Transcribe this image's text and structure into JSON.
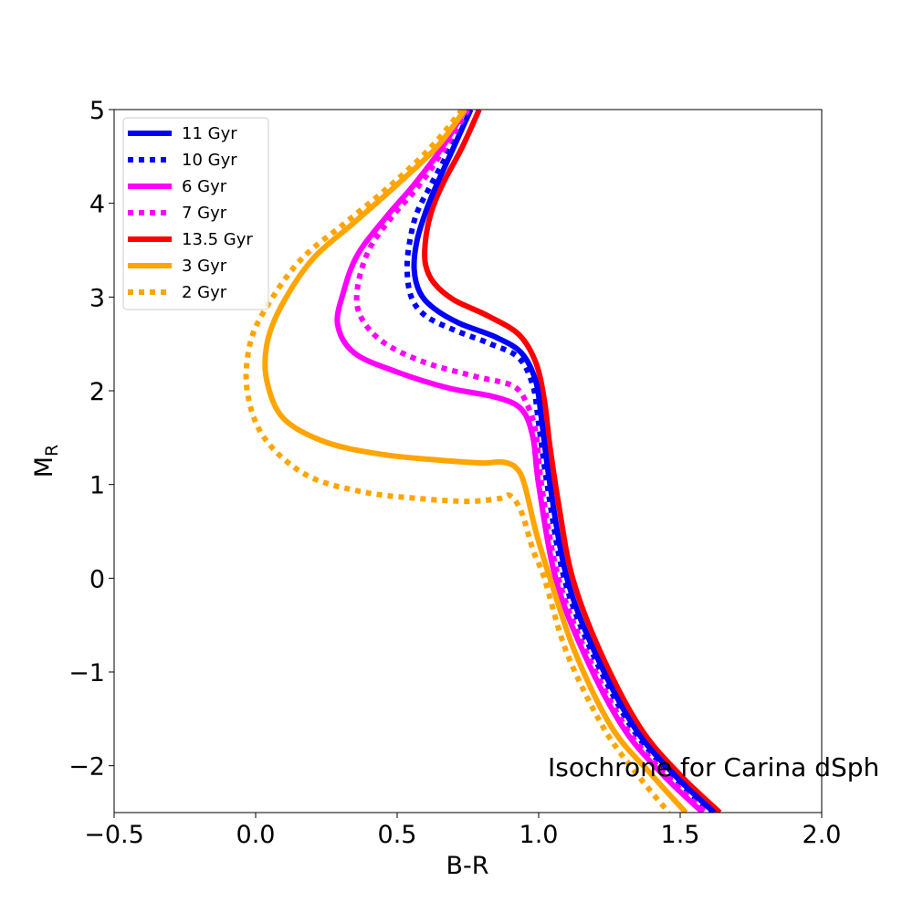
{
  "chart_data": {
    "type": "line",
    "title": "",
    "xlabel": "B-R",
    "ylabel_main": "M",
    "ylabel_sub": "R",
    "xlim": [
      -0.5,
      2.0
    ],
    "ylim": [
      5,
      -2.5
    ],
    "y_inverted": true,
    "grid": false,
    "legend_position": "top-left",
    "annotation": "Isochrone for Carina dSph",
    "x_ticks": [
      {
        "value": -0.5,
        "label": "−0.5"
      },
      {
        "value": 0.0,
        "label": "0.0"
      },
      {
        "value": 0.5,
        "label": "0.5"
      },
      {
        "value": 1.0,
        "label": "1.0"
      },
      {
        "value": 1.5,
        "label": "1.5"
      },
      {
        "value": 2.0,
        "label": "2.0"
      }
    ],
    "y_ticks": [
      {
        "value": -2,
        "label": "−2"
      },
      {
        "value": -1,
        "label": "−1"
      },
      {
        "value": 0,
        "label": "0"
      },
      {
        "value": 1,
        "label": "1"
      },
      {
        "value": 2,
        "label": "2"
      },
      {
        "value": 3,
        "label": "3"
      },
      {
        "value": 4,
        "label": "4"
      },
      {
        "value": 5,
        "label": "5"
      }
    ],
    "series": [
      {
        "name": "11 Gyr",
        "color": "#0000ff",
        "style": "solid",
        "points": [
          [
            0.76,
            5.0
          ],
          [
            0.7,
            4.6
          ],
          [
            0.64,
            4.2
          ],
          [
            0.6,
            3.9
          ],
          [
            0.57,
            3.6
          ],
          [
            0.56,
            3.3
          ],
          [
            0.58,
            3.05
          ],
          [
            0.63,
            2.88
          ],
          [
            0.72,
            2.72
          ],
          [
            0.85,
            2.57
          ],
          [
            0.94,
            2.4
          ],
          [
            0.99,
            2.1
          ],
          [
            1.01,
            1.7
          ],
          [
            1.04,
            1.0
          ],
          [
            1.1,
            0.0
          ],
          [
            1.2,
            -0.8
          ],
          [
            1.34,
            -1.6
          ],
          [
            1.48,
            -2.1
          ],
          [
            1.62,
            -2.5
          ]
        ]
      },
      {
        "name": "10 Gyr",
        "color": "#0000ff",
        "style": "dotted",
        "points": [
          [
            0.75,
            5.0
          ],
          [
            0.69,
            4.6
          ],
          [
            0.62,
            4.2
          ],
          [
            0.57,
            3.9
          ],
          [
            0.545,
            3.6
          ],
          [
            0.535,
            3.3
          ],
          [
            0.55,
            3.0
          ],
          [
            0.6,
            2.8
          ],
          [
            0.7,
            2.65
          ],
          [
            0.83,
            2.5
          ],
          [
            0.93,
            2.35
          ],
          [
            0.98,
            2.05
          ],
          [
            1.0,
            1.65
          ],
          [
            1.03,
            1.0
          ],
          [
            1.09,
            0.0
          ],
          [
            1.19,
            -0.8
          ],
          [
            1.33,
            -1.6
          ],
          [
            1.47,
            -2.1
          ],
          [
            1.61,
            -2.5
          ]
        ]
      },
      {
        "name": "6 Gyr",
        "color": "#ff00ff",
        "style": "solid",
        "points": [
          [
            0.74,
            5.0
          ],
          [
            0.66,
            4.6
          ],
          [
            0.56,
            4.2
          ],
          [
            0.46,
            3.85
          ],
          [
            0.36,
            3.45
          ],
          [
            0.31,
            3.05
          ],
          [
            0.29,
            2.7
          ],
          [
            0.35,
            2.4
          ],
          [
            0.5,
            2.2
          ],
          [
            0.68,
            2.03
          ],
          [
            0.85,
            1.93
          ],
          [
            0.94,
            1.8
          ],
          [
            0.98,
            1.5
          ],
          [
            1.0,
            1.0
          ],
          [
            1.06,
            0.0
          ],
          [
            1.16,
            -0.8
          ],
          [
            1.3,
            -1.6
          ],
          [
            1.44,
            -2.1
          ],
          [
            1.58,
            -2.5
          ]
        ]
      },
      {
        "name": "7 Gyr",
        "color": "#ff00ff",
        "style": "dotted",
        "points": [
          [
            0.75,
            5.0
          ],
          [
            0.67,
            4.6
          ],
          [
            0.58,
            4.2
          ],
          [
            0.48,
            3.85
          ],
          [
            0.4,
            3.5
          ],
          [
            0.36,
            3.1
          ],
          [
            0.37,
            2.8
          ],
          [
            0.45,
            2.52
          ],
          [
            0.6,
            2.3
          ],
          [
            0.78,
            2.15
          ],
          [
            0.91,
            2.05
          ],
          [
            0.96,
            1.85
          ],
          [
            0.99,
            1.55
          ],
          [
            1.01,
            1.0
          ],
          [
            1.07,
            0.0
          ],
          [
            1.17,
            -0.8
          ],
          [
            1.31,
            -1.6
          ],
          [
            1.45,
            -2.1
          ],
          [
            1.59,
            -2.5
          ]
        ]
      },
      {
        "name": "13.5 Gyr",
        "color": "#ff0000",
        "style": "solid",
        "points": [
          [
            0.79,
            5.0
          ],
          [
            0.73,
            4.6
          ],
          [
            0.66,
            4.2
          ],
          [
            0.62,
            3.9
          ],
          [
            0.6,
            3.6
          ],
          [
            0.6,
            3.35
          ],
          [
            0.63,
            3.15
          ],
          [
            0.7,
            2.97
          ],
          [
            0.82,
            2.8
          ],
          [
            0.93,
            2.6
          ],
          [
            0.99,
            2.3
          ],
          [
            1.02,
            1.9
          ],
          [
            1.04,
            1.4
          ],
          [
            1.07,
            0.8
          ],
          [
            1.12,
            0.0
          ],
          [
            1.22,
            -0.8
          ],
          [
            1.36,
            -1.6
          ],
          [
            1.5,
            -2.1
          ],
          [
            1.64,
            -2.5
          ]
        ]
      },
      {
        "name": "3 Gyr",
        "color": "#ffa500",
        "style": "solid",
        "points": [
          [
            0.74,
            5.0
          ],
          [
            0.64,
            4.6
          ],
          [
            0.5,
            4.2
          ],
          [
            0.35,
            3.8
          ],
          [
            0.2,
            3.4
          ],
          [
            0.09,
            2.9
          ],
          [
            0.04,
            2.5
          ],
          [
            0.04,
            2.1
          ],
          [
            0.1,
            1.7
          ],
          [
            0.25,
            1.45
          ],
          [
            0.45,
            1.32
          ],
          [
            0.65,
            1.26
          ],
          [
            0.8,
            1.23
          ],
          [
            0.87,
            1.24
          ],
          [
            0.92,
            1.18
          ],
          [
            0.95,
            1.0
          ],
          [
            0.99,
            0.5
          ],
          [
            1.04,
            0.0
          ],
          [
            1.13,
            -0.8
          ],
          [
            1.26,
            -1.6
          ],
          [
            1.4,
            -2.1
          ],
          [
            1.52,
            -2.5
          ]
        ]
      },
      {
        "name": "2 Gyr",
        "color": "#ffa500",
        "style": "dotted",
        "points": [
          [
            0.73,
            5.0
          ],
          [
            0.62,
            4.6
          ],
          [
            0.48,
            4.2
          ],
          [
            0.32,
            3.8
          ],
          [
            0.16,
            3.4
          ],
          [
            0.04,
            2.9
          ],
          [
            -0.02,
            2.5
          ],
          [
            -0.03,
            2.0
          ],
          [
            0.03,
            1.5
          ],
          [
            0.18,
            1.1
          ],
          [
            0.38,
            0.92
          ],
          [
            0.58,
            0.85
          ],
          [
            0.75,
            0.82
          ],
          [
            0.86,
            0.85
          ],
          [
            0.9,
            0.88
          ],
          [
            0.94,
            0.7
          ],
          [
            0.98,
            0.3
          ],
          [
            1.02,
            0.0
          ],
          [
            1.1,
            -0.8
          ],
          [
            1.23,
            -1.6
          ],
          [
            1.35,
            -2.1
          ],
          [
            1.46,
            -2.5
          ]
        ]
      }
    ]
  }
}
